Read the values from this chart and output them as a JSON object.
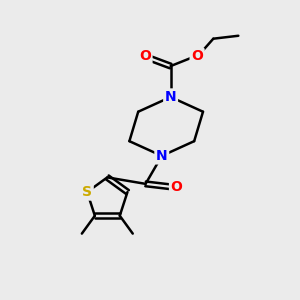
{
  "bg_color": "#ebebeb",
  "atom_colors": {
    "C": "#000000",
    "N": "#0000ff",
    "O": "#ff0000",
    "S": "#ccaa00"
  },
  "bond_color": "#000000",
  "bond_width": 1.8,
  "figsize": [
    3.0,
    3.0
  ],
  "dpi": 100,
  "xlim": [
    0,
    10
  ],
  "ylim": [
    0,
    10
  ]
}
